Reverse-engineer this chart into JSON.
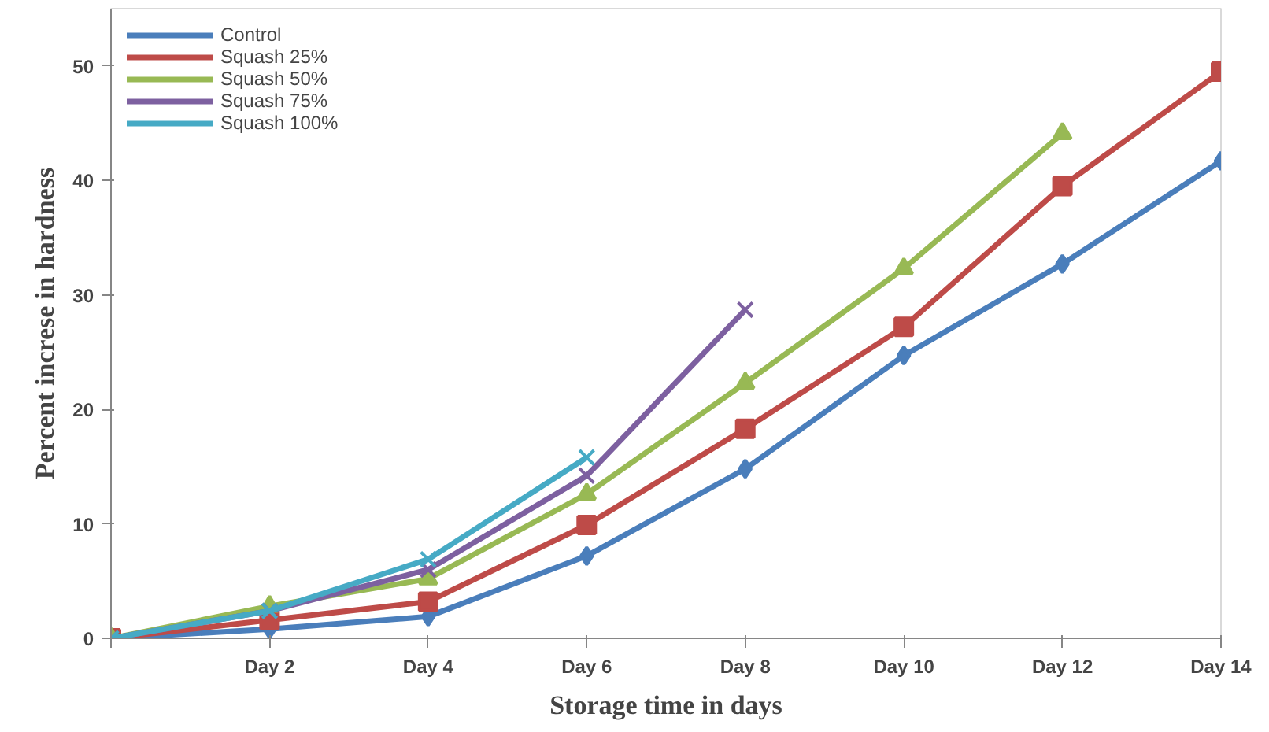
{
  "chart_data": {
    "type": "line",
    "xlabel": "Storage time in days",
    "ylabel": "Percent increse in hardness",
    "categories": [
      null,
      "Day 2",
      "Day 4",
      "Day 6",
      "Day 8",
      "Day 10",
      "Day 12",
      "Day 14"
    ],
    "ylim": [
      0,
      55
    ],
    "yticks": [
      0,
      10,
      20,
      30,
      40,
      50
    ],
    "grid": false,
    "legend": "top left",
    "line_style": "solid",
    "series": [
      {
        "name": "Control",
        "color": "#4a7ebb",
        "marker": "diamond",
        "values": [
          0,
          0.8,
          1.9,
          7.2,
          14.8,
          24.7,
          32.7,
          41.7
        ]
      },
      {
        "name": "Squash 25%",
        "color": "#be4b48",
        "marker": "square",
        "values": [
          0,
          1.6,
          3.2,
          9.9,
          18.3,
          27.2,
          39.5,
          49.5
        ]
      },
      {
        "name": "Squash 50%",
        "color": "#98b954",
        "marker": "triangle",
        "values": [
          0,
          2.8,
          5.2,
          12.6,
          22.3,
          32.3,
          44.1,
          null
        ]
      },
      {
        "name": "Squash 75%",
        "color": "#7d60a0",
        "marker": "cross",
        "values": [
          0,
          2.4,
          6.0,
          14.2,
          28.7,
          null,
          null,
          null
        ]
      },
      {
        "name": "Squash 100%",
        "color": "#46aac5",
        "marker": "cross",
        "values": [
          0,
          2.4,
          6.9,
          15.8,
          null,
          null,
          null,
          null
        ]
      }
    ]
  }
}
